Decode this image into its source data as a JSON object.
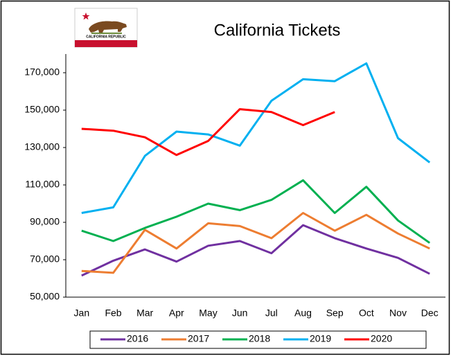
{
  "chart_data": {
    "type": "line",
    "title": "California Tickets",
    "annotation": "CALIFORNIA REPUBLIC",
    "categories": [
      "Jan",
      "Feb",
      "Mar",
      "Apr",
      "May",
      "Jun",
      "Jul",
      "Aug",
      "Sep",
      "Oct",
      "Nov",
      "Dec"
    ],
    "series": [
      {
        "name": "2016",
        "color": "#7030a0",
        "values": [
          61500,
          69500,
          75500,
          69000,
          77500,
          80000,
          73500,
          88500,
          81500,
          76000,
          71000,
          62500
        ]
      },
      {
        "name": "2017",
        "color": "#ed7d31",
        "values": [
          64000,
          63000,
          86000,
          76000,
          89500,
          88000,
          81500,
          95000,
          85500,
          94000,
          84000,
          76000
        ]
      },
      {
        "name": "2018",
        "color": "#00b050",
        "values": [
          85500,
          80000,
          87000,
          93000,
          100000,
          96500,
          102000,
          112500,
          95000,
          109000,
          91000,
          79000
        ]
      },
      {
        "name": "2019",
        "color": "#00b0f0",
        "values": [
          95000,
          98000,
          125500,
          138500,
          137000,
          131000,
          155000,
          166500,
          165500,
          175000,
          135000,
          122000
        ]
      },
      {
        "name": "2020",
        "color": "#ff0000",
        "values": [
          140000,
          139000,
          135500,
          126000,
          133500,
          150500,
          149000,
          142000,
          149000,
          null,
          null,
          null
        ]
      }
    ],
    "ylim": [
      50000,
      180000
    ],
    "yticks": [
      {
        "value": 50000,
        "label": "50,000"
      },
      {
        "value": 70000,
        "label": "70,000"
      },
      {
        "value": 90000,
        "label": "90,000"
      },
      {
        "value": 110000,
        "label": "110,000"
      },
      {
        "value": 130000,
        "label": "130,000"
      },
      {
        "value": 150000,
        "label": "150,000"
      },
      {
        "value": 170000,
        "label": "170,000"
      }
    ],
    "grid": false,
    "legend": "bottom"
  }
}
